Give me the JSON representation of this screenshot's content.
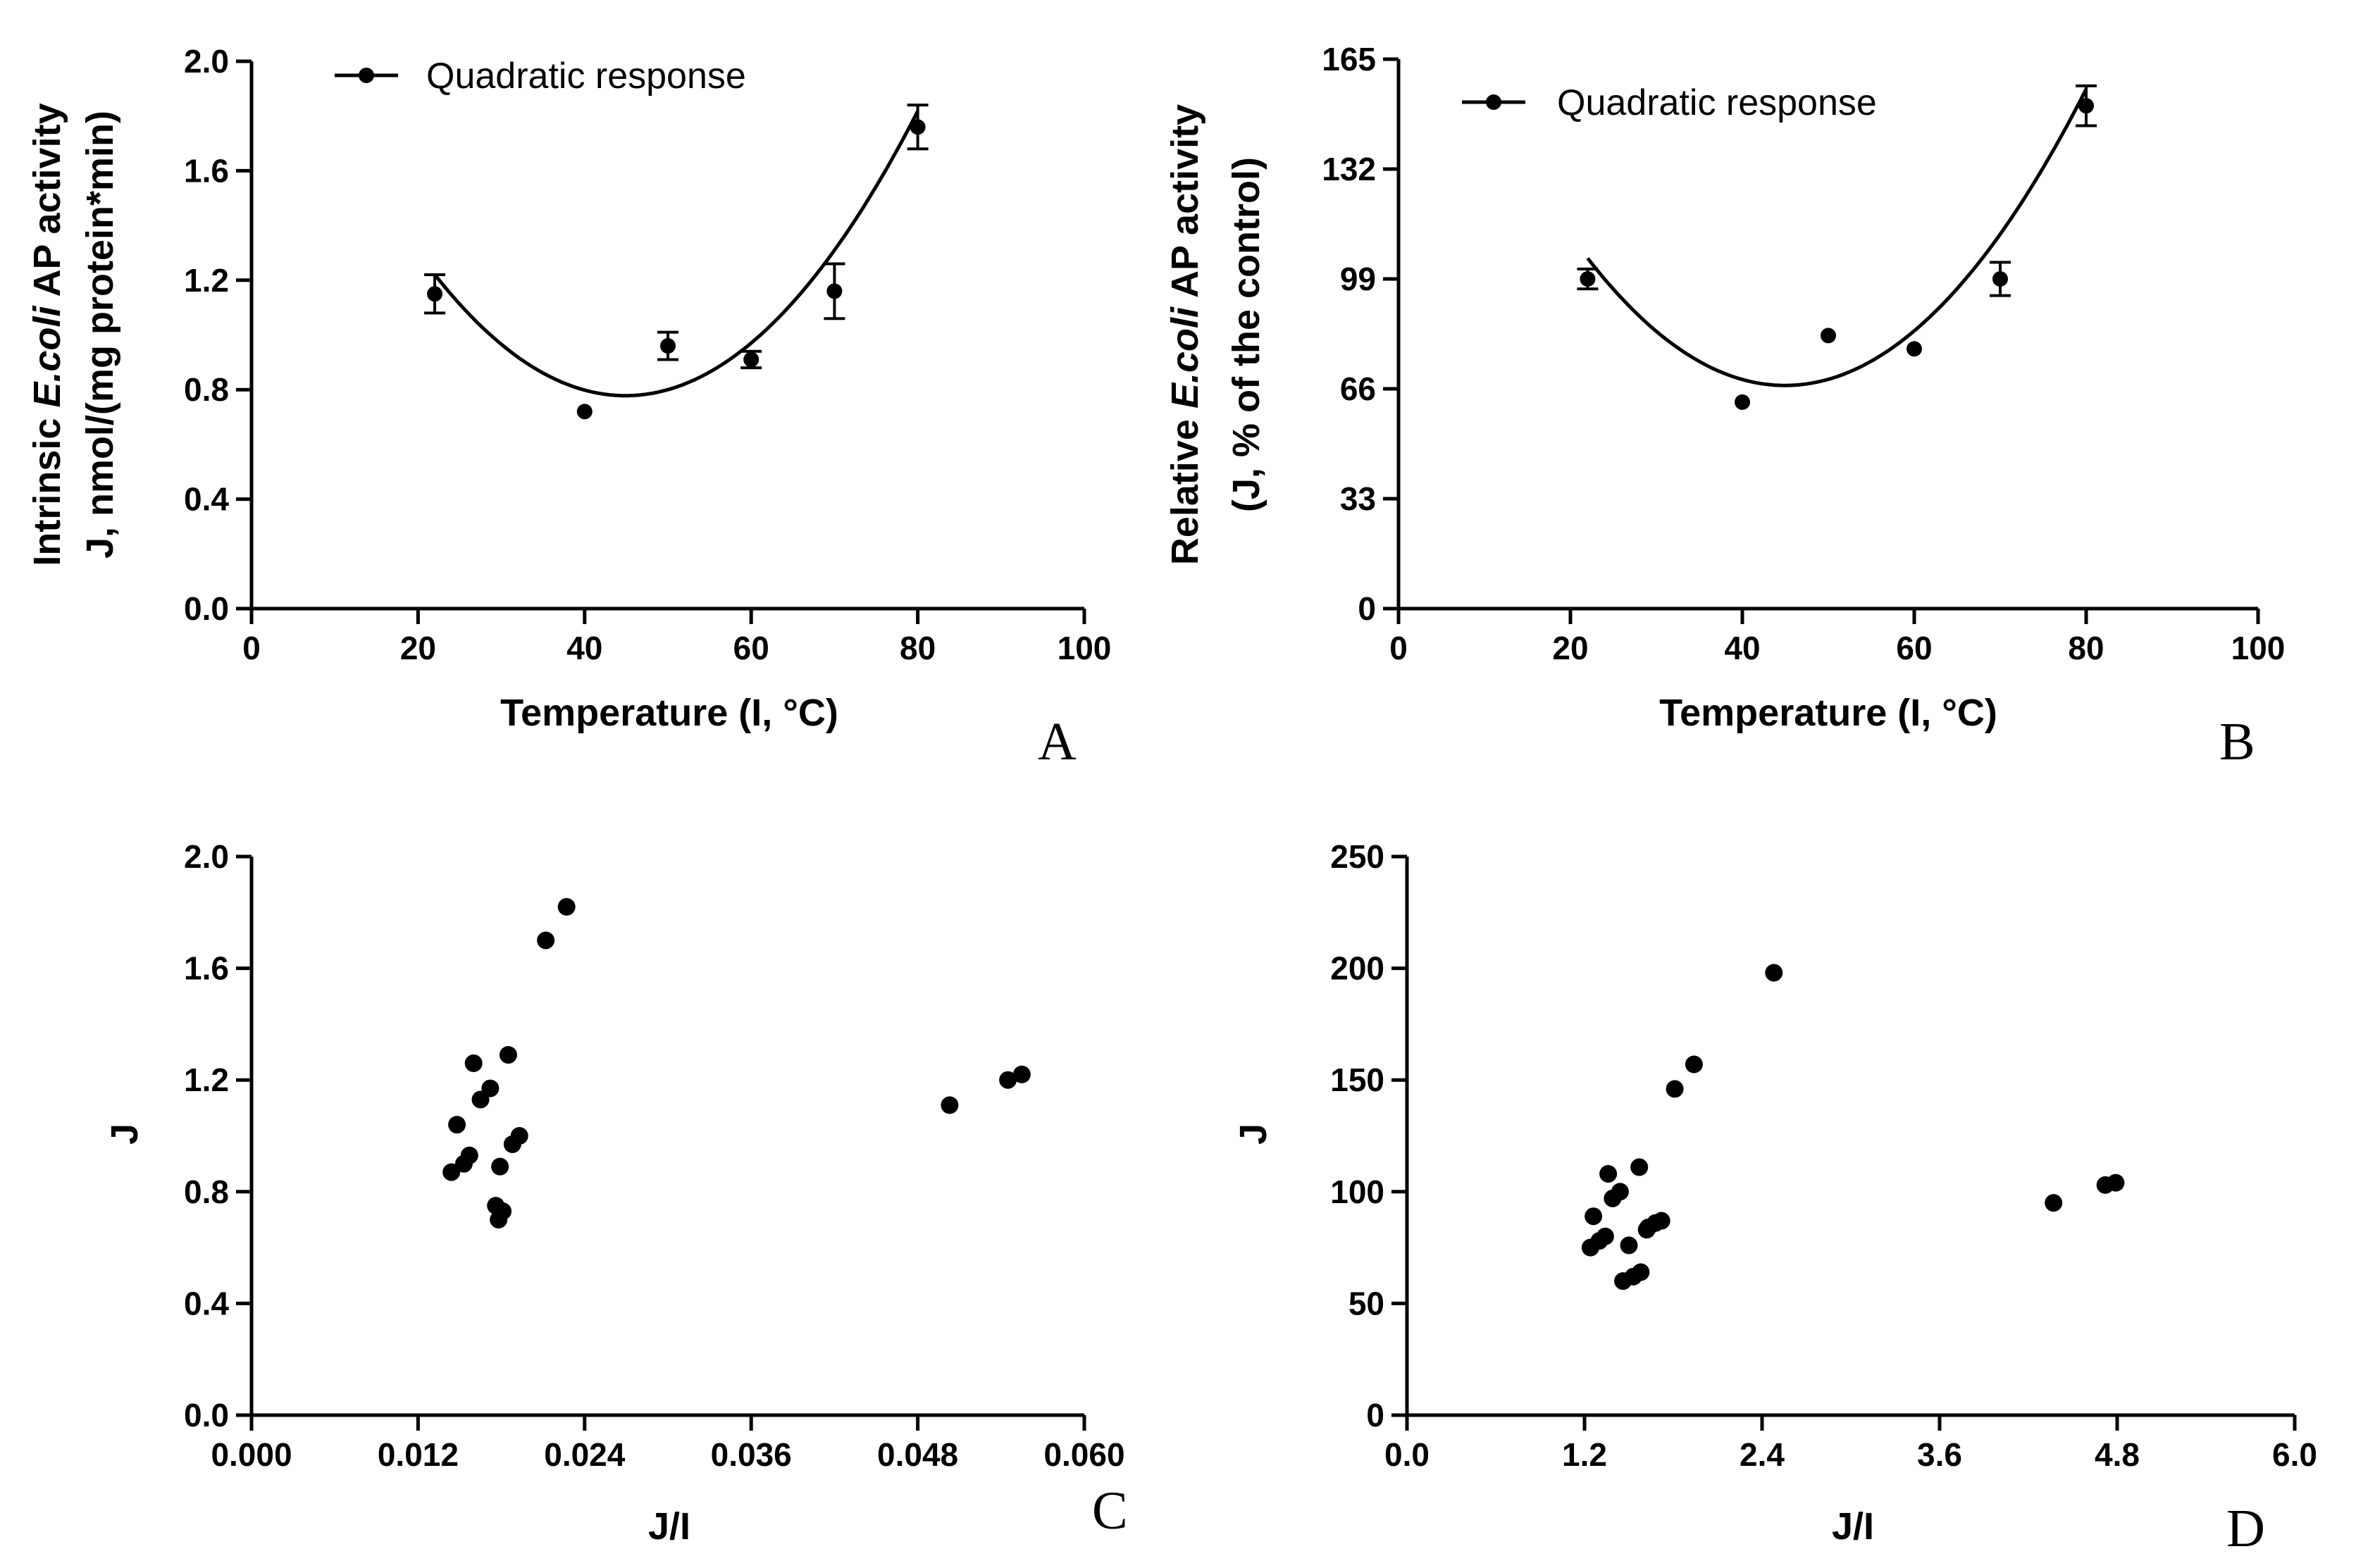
{
  "chart_data": [
    {
      "id": "A",
      "type": "scatter",
      "panel_label": "A",
      "legend": "Quadratic response",
      "xlabel": "Temperature (I, °C)",
      "ylabel_lines": [
        [
          "Intrinsic ",
          {
            "i": "E.coli"
          },
          " AP activity"
        ],
        [
          "J, nmol/(mg protein*min)"
        ]
      ],
      "xlim": [
        0,
        100
      ],
      "ylim": [
        0,
        2.0
      ],
      "xticks": [
        0,
        20,
        40,
        60,
        80,
        100
      ],
      "xtick_labels": [
        "0",
        "20",
        "40",
        "60",
        "80",
        "100"
      ],
      "yticks": [
        0,
        0.4,
        0.8,
        1.2,
        1.6,
        2.0
      ],
      "ytick_labels": [
        "0.0",
        "0.4",
        "0.8",
        "1.2",
        "1.6",
        "2.0"
      ],
      "x": [
        22,
        40,
        50,
        60,
        70,
        80
      ],
      "y": [
        1.15,
        0.72,
        0.96,
        0.91,
        1.16,
        1.76
      ],
      "err": [
        0.07,
        0,
        0.05,
        0.03,
        0.1,
        0.08
      ],
      "fit": {
        "type": "quadratic",
        "a": 0.000844,
        "b": -0.0758,
        "c": 2.48
      }
    },
    {
      "id": "B",
      "type": "scatter",
      "panel_label": "B",
      "legend": "Quadratic response",
      "xlabel": "Temperature (I, °C)",
      "ylabel_lines": [
        [
          "Relative ",
          {
            "i": "E.coli"
          },
          " AP activity"
        ],
        [
          "(J, % of the control)"
        ]
      ],
      "xlim": [
        0,
        100
      ],
      "ylim": [
        0,
        165
      ],
      "xticks": [
        0,
        20,
        40,
        60,
        80,
        100
      ],
      "xtick_labels": [
        "0",
        "20",
        "40",
        "60",
        "80",
        "100"
      ],
      "yticks": [
        0,
        33,
        66,
        99,
        132,
        165
      ],
      "ytick_labels": [
        "0",
        "33",
        "66",
        "99",
        "132",
        "165"
      ],
      "x": [
        22,
        40,
        50,
        60,
        70,
        80
      ],
      "y": [
        99,
        62,
        82,
        78,
        99,
        151
      ],
      "err": [
        3,
        0,
        0,
        0,
        5,
        6
      ],
      "fit": {
        "type": "quadratic",
        "a": 0.0725,
        "b": -6.52,
        "c": 213.6
      }
    },
    {
      "id": "C",
      "type": "scatter",
      "panel_label": "C",
      "xlabel": "J/I",
      "ylabel_lines": [
        [
          "J"
        ]
      ],
      "xlim": [
        0,
        0.06
      ],
      "ylim": [
        0,
        2.0
      ],
      "xticks": [
        0,
        0.012,
        0.024,
        0.036,
        0.048,
        0.06
      ],
      "xtick_labels": [
        "0.000",
        "0.012",
        "0.024",
        "0.036",
        "0.048",
        "0.060"
      ],
      "yticks": [
        0,
        0.4,
        0.8,
        1.2,
        1.6,
        2.0
      ],
      "ytick_labels": [
        "0.0",
        "0.4",
        "0.8",
        "1.2",
        "1.6",
        "2.0"
      ],
      "x": [
        0.0144,
        0.0148,
        0.0153,
        0.0157,
        0.016,
        0.0165,
        0.0172,
        0.0178,
        0.0181,
        0.0179,
        0.0176,
        0.0185,
        0.0193,
        0.0188,
        0.0212,
        0.0227,
        0.0503,
        0.0545,
        0.0555
      ],
      "y": [
        0.87,
        1.04,
        0.9,
        0.93,
        1.26,
        1.13,
        1.17,
        0.7,
        0.73,
        0.89,
        0.75,
        1.29,
        1.0,
        0.97,
        1.7,
        1.82,
        1.11,
        1.2,
        1.22
      ]
    },
    {
      "id": "D",
      "type": "scatter",
      "panel_label": "D",
      "xlabel": "J/I",
      "ylabel_lines": [
        [
          "J"
        ]
      ],
      "xlim": [
        0,
        6.0
      ],
      "ylim": [
        0,
        250
      ],
      "xticks": [
        0,
        1.2,
        2.4,
        3.6,
        4.8,
        6.0
      ],
      "xtick_labels": [
        "0.0",
        "1.2",
        "2.4",
        "3.6",
        "4.8",
        "6.0"
      ],
      "yticks": [
        0,
        50,
        100,
        150,
        200,
        250
      ],
      "ytick_labels": [
        "0",
        "50",
        "100",
        "150",
        "200",
        "250"
      ],
      "x": [
        1.24,
        1.26,
        1.3,
        1.34,
        1.36,
        1.39,
        1.44,
        1.46,
        1.5,
        1.53,
        1.57,
        1.58,
        1.62,
        1.63,
        1.68,
        1.72,
        1.81,
        1.94,
        2.48,
        4.37,
        4.72,
        4.79
      ],
      "y": [
        75,
        89,
        78,
        80,
        108,
        97,
        100,
        60,
        76,
        62,
        111,
        64,
        83,
        84,
        86,
        87,
        146,
        157,
        198,
        95,
        103,
        104
      ]
    }
  ]
}
